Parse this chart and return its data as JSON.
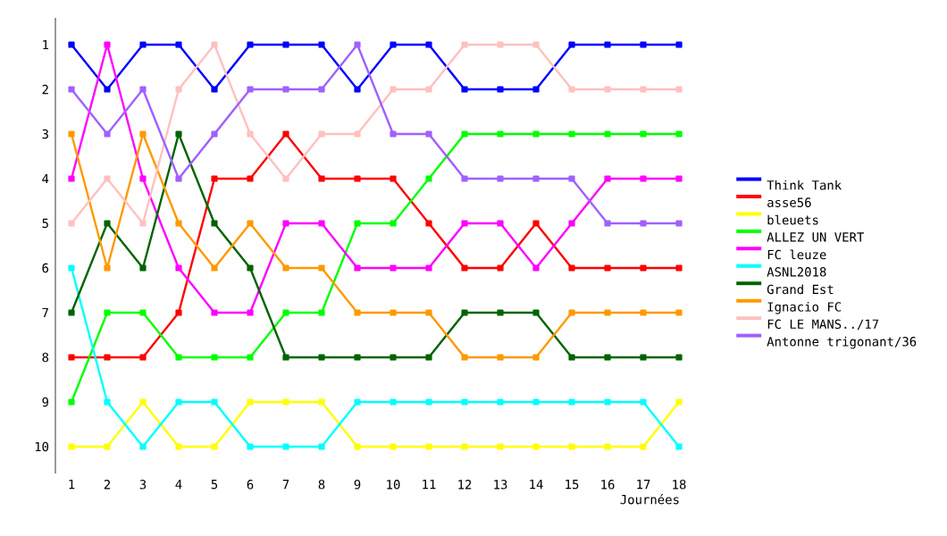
{
  "chart_data": {
    "type": "line",
    "xlabel": "Journées",
    "x": [
      1,
      2,
      3,
      4,
      5,
      6,
      7,
      8,
      9,
      10,
      11,
      12,
      13,
      14,
      15,
      16,
      17,
      18
    ],
    "xlim": [
      0.55,
      18
    ],
    "xticks": [
      1,
      2,
      3,
      4,
      5,
      6,
      7,
      8,
      9,
      10,
      11,
      12,
      13,
      14,
      15,
      16,
      17,
      18
    ],
    "ylim": [
      10.6,
      0.4
    ],
    "yticks": [
      1,
      2,
      3,
      4,
      5,
      6,
      7,
      8,
      9,
      10
    ],
    "grid": false,
    "legend": "right",
    "marker": "square",
    "line_style": "solid",
    "series": [
      {
        "name": "Think Tank",
        "color": "#0000ff",
        "values": [
          1,
          2,
          1,
          1,
          2,
          1,
          1,
          1,
          2,
          1,
          1,
          2,
          2,
          2,
          1,
          1,
          1,
          1
        ]
      },
      {
        "name": "asse56",
        "color": "#ff0000",
        "values": [
          8,
          8,
          8,
          7,
          4,
          4,
          3,
          4,
          4,
          4,
          5,
          6,
          6,
          5,
          6,
          6,
          6,
          6
        ]
      },
      {
        "name": "bleuets",
        "color": "#ffff00",
        "values": [
          10,
          10,
          9,
          10,
          10,
          9,
          9,
          9,
          10,
          10,
          10,
          10,
          10,
          10,
          10,
          10,
          10,
          9
        ]
      },
      {
        "name": "ALLEZ UN VERT",
        "color": "#00ff00",
        "values": [
          9,
          7,
          7,
          8,
          8,
          8,
          7,
          7,
          5,
          5,
          4,
          3,
          3,
          3,
          3,
          3,
          3,
          3
        ]
      },
      {
        "name": "FC leuze",
        "color": "#ff00ff",
        "values": [
          4,
          1,
          4,
          6,
          7,
          7,
          5,
          5,
          6,
          6,
          6,
          5,
          5,
          6,
          5,
          4,
          4,
          4
        ]
      },
      {
        "name": "ASNL2018",
        "color": "#00ffff",
        "values": [
          6,
          9,
          10,
          9,
          9,
          10,
          10,
          10,
          9,
          9,
          9,
          9,
          9,
          9,
          9,
          9,
          9,
          10
        ]
      },
      {
        "name": "Grand Est",
        "color": "#006400",
        "values": [
          7,
          5,
          6,
          3,
          5,
          6,
          8,
          8,
          8,
          8,
          8,
          7,
          7,
          7,
          8,
          8,
          8,
          8
        ]
      },
      {
        "name": "Ignacio FC",
        "color": "#ff9900",
        "values": [
          3,
          6,
          3,
          5,
          6,
          5,
          6,
          6,
          7,
          7,
          7,
          8,
          8,
          8,
          7,
          7,
          7,
          7
        ]
      },
      {
        "name": "FC LE MANS../17",
        "color": "#ffc0c0",
        "values": [
          5,
          4,
          5,
          2,
          1,
          3,
          4,
          3,
          3,
          2,
          2,
          1,
          1,
          1,
          2,
          2,
          2,
          2
        ]
      },
      {
        "name": "Antonne trigonant/36",
        "color": "#a060ff",
        "values": [
          2,
          3,
          2,
          4,
          3,
          2,
          2,
          2,
          1,
          3,
          3,
          4,
          4,
          4,
          4,
          5,
          5,
          5
        ]
      }
    ]
  }
}
